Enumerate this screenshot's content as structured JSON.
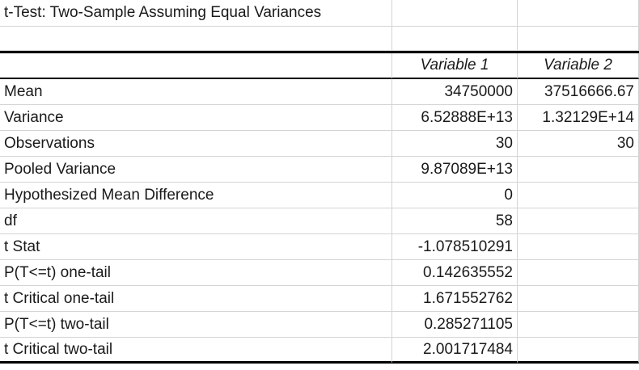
{
  "title": "t-Test: Two-Sample Assuming Equal Variances",
  "columns": [
    "",
    "Variable 1",
    "Variable 2"
  ],
  "rows": [
    {
      "label": "Mean",
      "v1": "34750000",
      "v2": "37516666.67"
    },
    {
      "label": "Variance",
      "v1": "6.52888E+13",
      "v2": "1.32129E+14"
    },
    {
      "label": "Observations",
      "v1": "30",
      "v2": "30"
    },
    {
      "label": "Pooled Variance",
      "v1": "9.87089E+13",
      "v2": ""
    },
    {
      "label": "Hypothesized Mean Difference",
      "v1": "0",
      "v2": ""
    },
    {
      "label": "df",
      "v1": "58",
      "v2": ""
    },
    {
      "label": "t Stat",
      "v1": "-1.078510291",
      "v2": ""
    },
    {
      "label": "P(T<=t) one-tail",
      "v1": "0.142635552",
      "v2": ""
    },
    {
      "label": "t Critical one-tail",
      "v1": "1.671552762",
      "v2": ""
    },
    {
      "label": "P(T<=t) two-tail",
      "v1": "0.285271105",
      "v2": ""
    },
    {
      "label": "t Critical two-tail",
      "v1": "2.001717484",
      "v2": ""
    }
  ]
}
